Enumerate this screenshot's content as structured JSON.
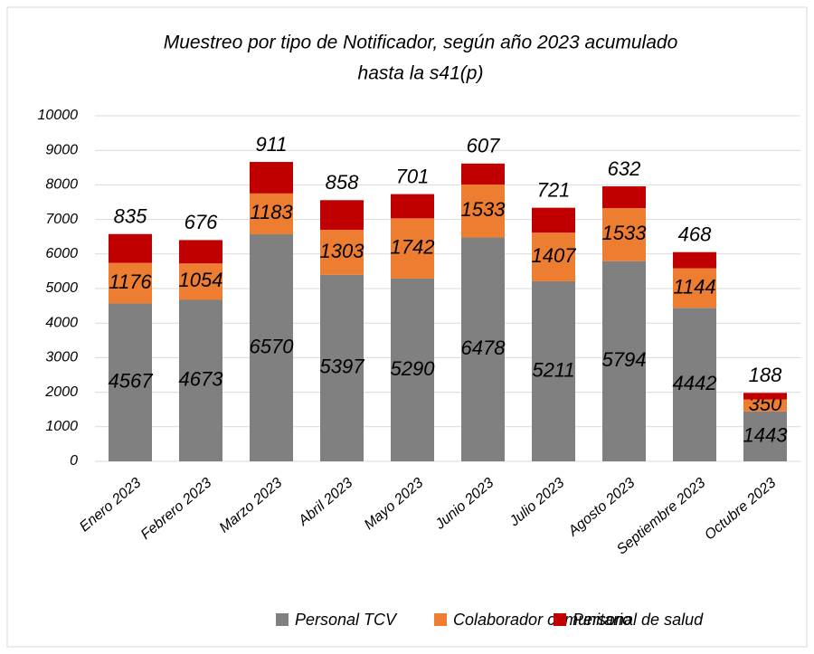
{
  "chart_data": {
    "type": "stacked_bar",
    "title": "Muestreo por tipo de Notificador, según año 2023 acumulado",
    "subtitle": "hasta la s41(p)",
    "categories": [
      "Enero 2023",
      "Febrero 2023",
      "Marzo 2023",
      "Abril 2023",
      "Mayo 2023",
      "Junio 2023",
      "Julio 2023",
      "Agosto 2023",
      "Septiembre 2023",
      "Octubre 2023"
    ],
    "series": [
      {
        "name": "Personal TCV",
        "color": "#808080",
        "values": [
          4567,
          4673,
          6570,
          5397,
          5290,
          6478,
          5211,
          5794,
          4442,
          1443
        ]
      },
      {
        "name": "Colaborador comunitario",
        "color": "#ED7D31",
        "values": [
          1176,
          1054,
          1183,
          1303,
          1742,
          1533,
          1407,
          1533,
          1144,
          350
        ]
      },
      {
        "name": "Personal de salud",
        "color": "#C00000",
        "values": [
          835,
          676,
          911,
          858,
          701,
          607,
          721,
          632,
          468,
          188
        ]
      }
    ],
    "ylim": [
      0,
      10000
    ],
    "yticks": [
      0,
      1000,
      2000,
      3000,
      4000,
      5000,
      6000,
      7000,
      8000,
      9000,
      10000
    ],
    "grid": true
  }
}
